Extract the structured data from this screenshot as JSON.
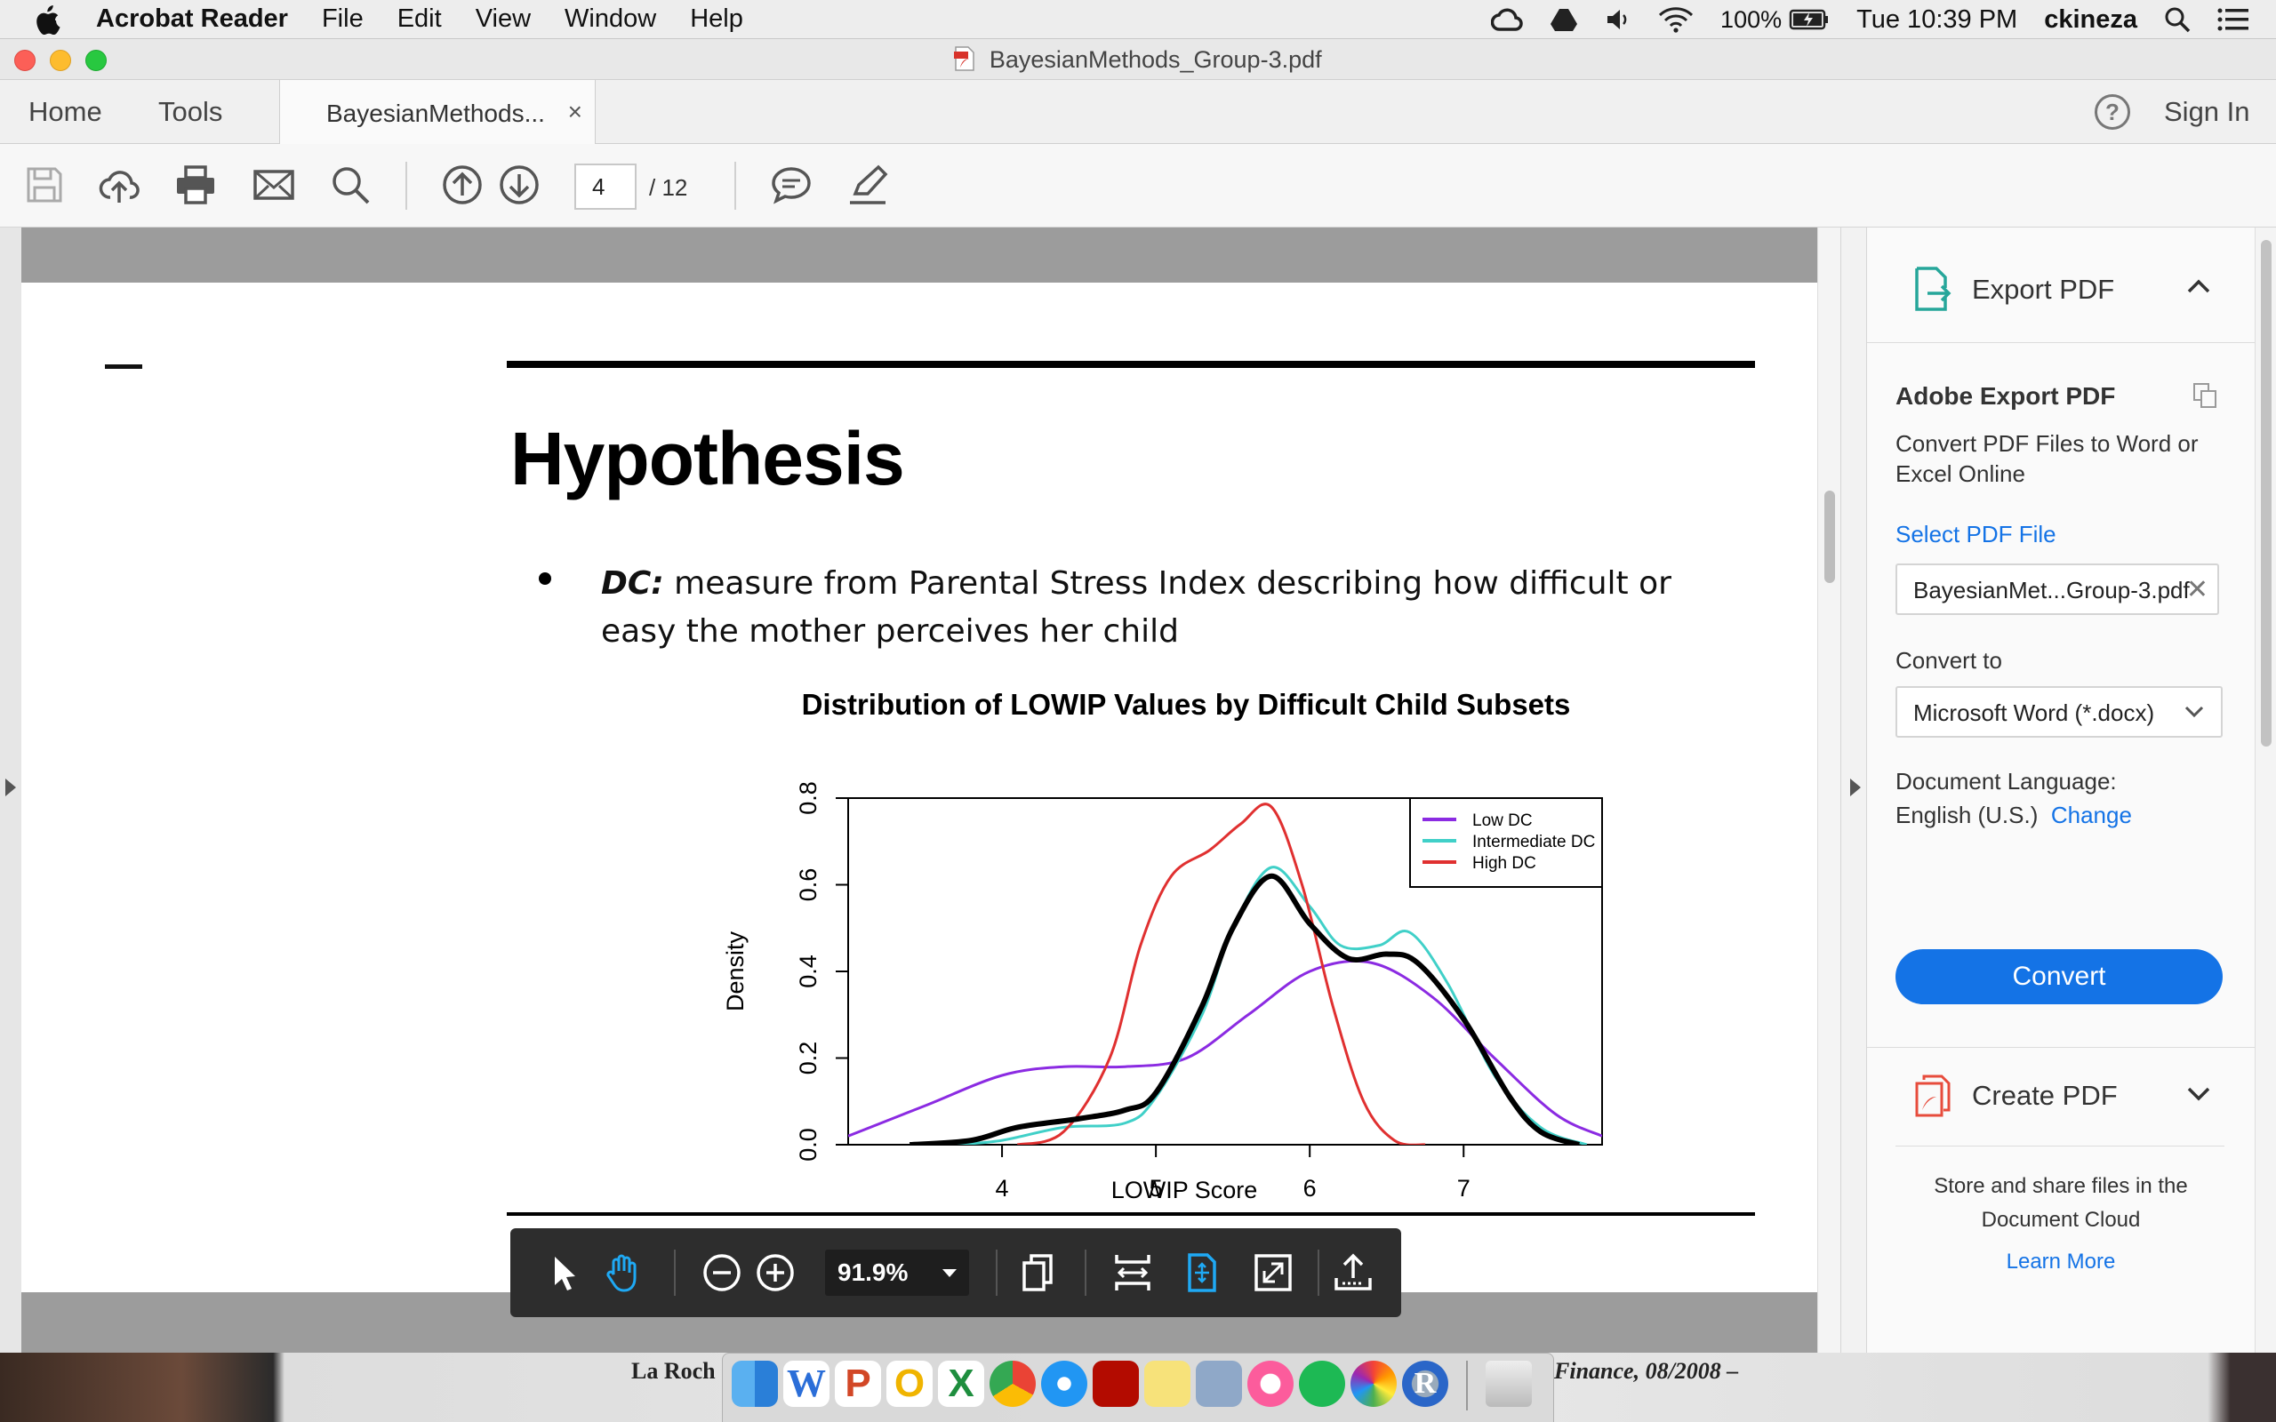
{
  "menubar": {
    "app_name": "Acrobat Reader",
    "menus": [
      "File",
      "Edit",
      "View",
      "Window",
      "Help"
    ],
    "battery": "100%",
    "clock": "Tue 10:39 PM",
    "user": "ckineza"
  },
  "window": {
    "title": "BayesianMethods_Group-3.pdf"
  },
  "tabs": {
    "home": "Home",
    "tools": "Tools",
    "document": "BayesianMethods...",
    "close": "×",
    "help": "?",
    "sign_in": "Sign In"
  },
  "toolbar": {
    "current_page": "4",
    "total_pages": "/ 12"
  },
  "document": {
    "heading": "Hypothesis",
    "bullet_term": "DC:",
    "bullet_text": " measure from Parental Stress Index describing how difficult or easy the mother perceives her child"
  },
  "zoom": {
    "value": "91.9%"
  },
  "chart_data": {
    "type": "line",
    "title": "Distribution of LOWIP Values by Difficult Child Subsets",
    "xlabel": "LOWIP Score",
    "ylabel": "Density",
    "xlim": [
      3.0,
      7.9
    ],
    "ylim": [
      0.0,
      0.8
    ],
    "x_ticks": [
      "4",
      "5",
      "6",
      "7"
    ],
    "y_ticks": [
      "0.0",
      "0.2",
      "0.4",
      "0.6",
      "0.8"
    ],
    "legend_position": "top-right",
    "series": [
      {
        "name": "Low DC",
        "color": "#8b2be2",
        "x": [
          3.0,
          3.5,
          4.0,
          4.4,
          4.8,
          5.2,
          5.6,
          6.0,
          6.4,
          6.8,
          7.2,
          7.6,
          7.9
        ],
        "y": [
          0.02,
          0.09,
          0.16,
          0.18,
          0.18,
          0.2,
          0.3,
          0.4,
          0.42,
          0.34,
          0.2,
          0.07,
          0.02
        ]
      },
      {
        "name": "Intermediate DC",
        "color": "#40d0c8",
        "x": [
          3.7,
          4.0,
          4.4,
          4.8,
          5.0,
          5.3,
          5.5,
          5.75,
          6.0,
          6.2,
          6.45,
          6.65,
          6.9,
          7.2,
          7.5,
          7.8
        ],
        "y": [
          0.0,
          0.01,
          0.04,
          0.05,
          0.11,
          0.3,
          0.5,
          0.64,
          0.55,
          0.46,
          0.46,
          0.49,
          0.37,
          0.16,
          0.04,
          0.0
        ]
      },
      {
        "name": "High DC",
        "color": "#e03030",
        "x": [
          4.1,
          4.4,
          4.7,
          4.9,
          5.1,
          5.35,
          5.55,
          5.75,
          5.95,
          6.15,
          6.35,
          6.55,
          6.75
        ],
        "y": [
          0.0,
          0.03,
          0.2,
          0.46,
          0.62,
          0.68,
          0.74,
          0.78,
          0.6,
          0.32,
          0.1,
          0.01,
          0.0
        ]
      },
      {
        "name": "",
        "color": "#000000",
        "x": [
          3.4,
          3.8,
          4.1,
          4.5,
          4.8,
          5.0,
          5.3,
          5.5,
          5.75,
          6.0,
          6.25,
          6.5,
          6.7,
          7.0,
          7.3,
          7.5,
          7.75
        ],
        "y": [
          0.0,
          0.01,
          0.04,
          0.06,
          0.08,
          0.12,
          0.32,
          0.5,
          0.62,
          0.51,
          0.43,
          0.44,
          0.42,
          0.29,
          0.11,
          0.03,
          0.0
        ]
      }
    ]
  },
  "export_pane": {
    "header": "Export PDF",
    "title": "Adobe Export PDF",
    "description": "Convert PDF Files to Word or Excel Online",
    "select_file": "Select PDF File",
    "file_name": "BayesianMet...Group-3.pdf",
    "convert_to_label": "Convert to",
    "convert_to_value": "Microsoft Word (*.docx)",
    "doc_lang_label": "Document Language:",
    "doc_lang_value": "English (U.S.)",
    "change_link": "Change",
    "convert_button": "Convert",
    "create_pdf": "Create PDF",
    "cloud_text": "Store and share files in the Document Cloud",
    "learn_more": "Learn More"
  },
  "background": {
    "left_text": "La Roch",
    "right_text": "Finance, 08/2008 –"
  }
}
